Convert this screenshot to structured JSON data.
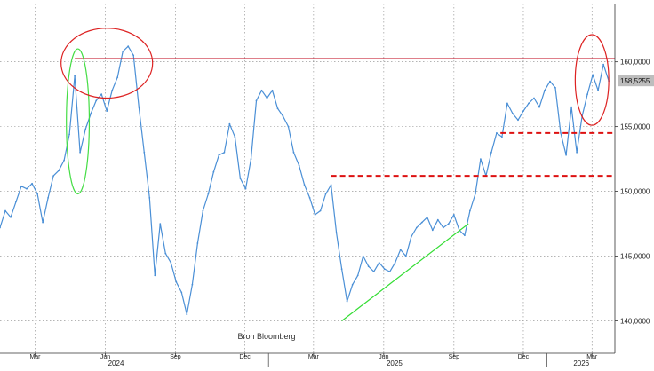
{
  "chart_data": {
    "type": "line",
    "title": "",
    "xlabel": "",
    "ylabel": "",
    "source_label": "Bron Bloomberg",
    "ylim": [
      137.5,
      164.5
    ],
    "xlim": [
      "2024-01-15",
      "2026-03-31"
    ],
    "y_ticks": [
      {
        "value": 140,
        "label": "140,0000"
      },
      {
        "value": 145,
        "label": "145,0000"
      },
      {
        "value": 150,
        "label": "150,0000"
      },
      {
        "value": 155,
        "label": "155,0000"
      },
      {
        "value": 160,
        "label": "160,0000"
      }
    ],
    "last_value": {
      "value": 158.5255,
      "label": "158,5255"
    },
    "x_month_ticks": [
      {
        "date": "2024-03-01",
        "label": "Mar"
      },
      {
        "date": "2024-06-01",
        "label": "Jun"
      },
      {
        "date": "2024-09-01",
        "label": "Sep"
      },
      {
        "date": "2024-12-01",
        "label": "Dec"
      },
      {
        "date": "2025-03-01",
        "label": "Mar"
      },
      {
        "date": "2025-06-01",
        "label": "Jun"
      },
      {
        "date": "2025-09-01",
        "label": "Sep"
      },
      {
        "date": "2025-12-01",
        "label": "Dec"
      },
      {
        "date": "2026-03-01",
        "label": "Mar"
      }
    ],
    "x_year_labels": [
      {
        "date": "2024-06-15",
        "label": "2024"
      },
      {
        "date": "2025-06-15",
        "label": "2025"
      },
      {
        "date": "2026-02-15",
        "label": "2026"
      }
    ],
    "year_dividers": [
      "2025-01-01",
      "2026-01-01"
    ],
    "grid": true,
    "colors": {
      "price": "#4a8fd6",
      "resistance": "#cc3344",
      "support_dashed": "#dd1111",
      "trendline": "#33dd33",
      "highlight_green": "#44dd44",
      "highlight_red": "#dd2222",
      "grid": "#888888"
    },
    "series": [
      {
        "values": [
          [
            "2024-01-15",
            147.2
          ],
          [
            "2024-01-22",
            148.5
          ],
          [
            "2024-01-29",
            148.0
          ],
          [
            "2024-02-05",
            149.2
          ],
          [
            "2024-02-12",
            150.4
          ],
          [
            "2024-02-19",
            150.2
          ],
          [
            "2024-02-26",
            150.6
          ],
          [
            "2024-03-04",
            149.8
          ],
          [
            "2024-03-11",
            147.6
          ],
          [
            "2024-03-18",
            149.5
          ],
          [
            "2024-03-25",
            151.2
          ],
          [
            "2024-04-01",
            151.6
          ],
          [
            "2024-04-08",
            152.4
          ],
          [
            "2024-04-15",
            154.4
          ],
          [
            "2024-04-22",
            158.9
          ],
          [
            "2024-04-29",
            153.0
          ],
          [
            "2024-05-06",
            154.8
          ],
          [
            "2024-05-13",
            156.0
          ],
          [
            "2024-05-20",
            157.0
          ],
          [
            "2024-05-27",
            157.5
          ],
          [
            "2024-06-03",
            156.2
          ],
          [
            "2024-06-10",
            157.8
          ],
          [
            "2024-06-17",
            158.8
          ],
          [
            "2024-06-24",
            160.8
          ],
          [
            "2024-07-01",
            161.2
          ],
          [
            "2024-07-08",
            160.5
          ],
          [
            "2024-07-15",
            156.5
          ],
          [
            "2024-07-22",
            153.0
          ],
          [
            "2024-07-29",
            149.5
          ],
          [
            "2024-08-05",
            143.5
          ],
          [
            "2024-08-12",
            147.5
          ],
          [
            "2024-08-19",
            145.2
          ],
          [
            "2024-08-26",
            144.5
          ],
          [
            "2024-09-02",
            143.0
          ],
          [
            "2024-09-09",
            142.2
          ],
          [
            "2024-09-16",
            140.5
          ],
          [
            "2024-09-23",
            142.8
          ],
          [
            "2024-09-30",
            146.0
          ],
          [
            "2024-10-07",
            148.5
          ],
          [
            "2024-10-14",
            149.8
          ],
          [
            "2024-10-21",
            151.5
          ],
          [
            "2024-10-28",
            152.8
          ],
          [
            "2024-11-04",
            153.0
          ],
          [
            "2024-11-11",
            155.2
          ],
          [
            "2024-11-18",
            154.2
          ],
          [
            "2024-11-25",
            151.0
          ],
          [
            "2024-12-02",
            150.2
          ],
          [
            "2024-12-09",
            152.5
          ],
          [
            "2024-12-16",
            157.0
          ],
          [
            "2024-12-23",
            157.8
          ],
          [
            "2024-12-30",
            157.2
          ],
          [
            "2025-01-06",
            157.8
          ],
          [
            "2025-01-13",
            156.4
          ],
          [
            "2025-01-20",
            155.8
          ],
          [
            "2025-01-27",
            155.0
          ],
          [
            "2025-02-03",
            153.0
          ],
          [
            "2025-02-10",
            152.0
          ],
          [
            "2025-02-17",
            150.5
          ],
          [
            "2025-02-24",
            149.5
          ],
          [
            "2025-03-03",
            148.2
          ],
          [
            "2025-03-10",
            148.5
          ],
          [
            "2025-03-17",
            149.8
          ],
          [
            "2025-03-24",
            150.5
          ],
          [
            "2025-03-31",
            146.8
          ],
          [
            "2025-04-07",
            144.0
          ],
          [
            "2025-04-14",
            141.5
          ],
          [
            "2025-04-21",
            142.8
          ],
          [
            "2025-04-28",
            143.5
          ],
          [
            "2025-05-05",
            145.0
          ],
          [
            "2025-05-12",
            144.2
          ],
          [
            "2025-05-19",
            143.8
          ],
          [
            "2025-05-26",
            144.5
          ],
          [
            "2025-06-02",
            144.0
          ],
          [
            "2025-06-09",
            143.8
          ],
          [
            "2025-06-16",
            144.5
          ],
          [
            "2025-06-23",
            145.5
          ],
          [
            "2025-06-30",
            145.0
          ],
          [
            "2025-07-07",
            146.5
          ],
          [
            "2025-07-14",
            147.2
          ],
          [
            "2025-07-21",
            147.6
          ],
          [
            "2025-07-28",
            148.0
          ],
          [
            "2025-08-04",
            147.0
          ],
          [
            "2025-08-11",
            147.8
          ],
          [
            "2025-08-18",
            147.2
          ],
          [
            "2025-08-25",
            147.5
          ],
          [
            "2025-09-01",
            148.2
          ],
          [
            "2025-09-08",
            147.0
          ],
          [
            "2025-09-15",
            146.6
          ],
          [
            "2025-09-22",
            148.5
          ],
          [
            "2025-09-29",
            149.8
          ],
          [
            "2025-10-06",
            152.5
          ],
          [
            "2025-10-13",
            151.2
          ],
          [
            "2025-10-20",
            153.0
          ],
          [
            "2025-10-27",
            154.5
          ],
          [
            "2025-11-03",
            154.2
          ],
          [
            "2025-11-10",
            156.8
          ],
          [
            "2025-11-17",
            156.0
          ],
          [
            "2025-11-24",
            155.5
          ],
          [
            "2025-12-01",
            156.2
          ],
          [
            "2025-12-08",
            156.8
          ],
          [
            "2025-12-15",
            157.2
          ],
          [
            "2025-12-22",
            156.5
          ],
          [
            "2025-12-29",
            157.8
          ],
          [
            "2026-01-05",
            158.5
          ],
          [
            "2026-01-12",
            158.0
          ],
          [
            "2026-01-19",
            154.5
          ],
          [
            "2026-01-26",
            152.8
          ],
          [
            "2026-02-02",
            156.5
          ],
          [
            "2026-02-09",
            153.0
          ],
          [
            "2026-02-16",
            155.8
          ],
          [
            "2026-02-23",
            157.5
          ],
          [
            "2026-03-02",
            159.0
          ],
          [
            "2026-03-09",
            157.8
          ],
          [
            "2026-03-16",
            159.8
          ],
          [
            "2026-03-23",
            158.5255
          ]
        ]
      }
    ],
    "annotations": [
      {
        "type": "hline",
        "y": 160.25,
        "from": "2024-04-22",
        "to": "2026-03-31"
      },
      {
        "type": "hline_dashed",
        "y": 154.5,
        "from": "2025-11-01",
        "to": "2026-03-31"
      },
      {
        "type": "hline_dashed",
        "y": 151.2,
        "from": "2025-03-24",
        "to": "2026-03-31"
      },
      {
        "type": "trendline",
        "from": [
          "2025-04-07",
          140.0
        ],
        "to": [
          "2025-09-20",
          147.5
        ]
      },
      {
        "type": "ellipse",
        "color": "green",
        "center": [
          "2024-04-26",
          155.4
        ],
        "rx_days": 15,
        "ry": 5.6
      },
      {
        "type": "ellipse",
        "color": "red",
        "center": [
          "2024-06-03",
          159.9
        ],
        "rx_days": 60,
        "ry": 2.7
      },
      {
        "type": "ellipse",
        "color": "red",
        "center": [
          "2026-03-01",
          158.6
        ],
        "rx_days": 22,
        "ry": 3.5
      }
    ]
  }
}
